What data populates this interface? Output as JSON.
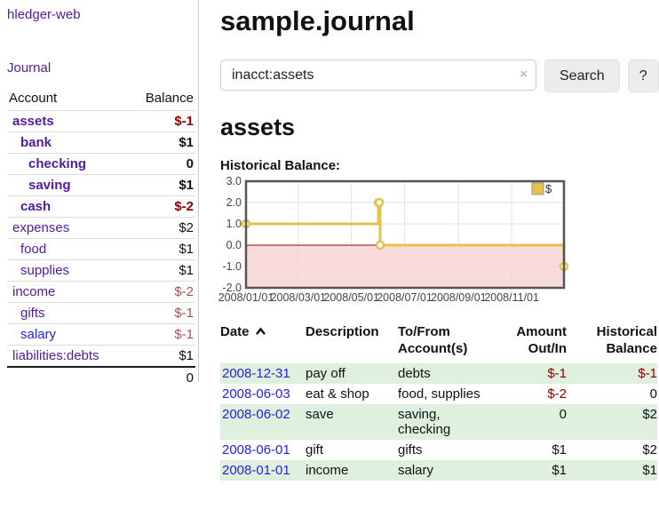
{
  "app": {
    "brand": "hledger-web",
    "nav_journal": "Journal"
  },
  "sidebar": {
    "headers": {
      "account": "Account",
      "balance": "Balance"
    },
    "accounts": [
      {
        "name": "assets",
        "indent": 1,
        "bold": true,
        "balance": "$-1",
        "negative": true,
        "unvisited": false
      },
      {
        "name": "bank",
        "indent": 2,
        "bold": true,
        "balance": "$1",
        "negative": false,
        "unvisited": false
      },
      {
        "name": "checking",
        "indent": 3,
        "bold": true,
        "balance": "0",
        "negative": false,
        "unvisited": false
      },
      {
        "name": "saving",
        "indent": 3,
        "bold": true,
        "balance": "$1",
        "negative": false,
        "unvisited": false
      },
      {
        "name": "cash",
        "indent": 2,
        "bold": true,
        "balance": "$-2",
        "negative": true,
        "unvisited": false
      },
      {
        "name": "expenses",
        "indent": 1,
        "bold": false,
        "balance": "$2",
        "negative": false,
        "unvisited": false
      },
      {
        "name": "food",
        "indent": 2,
        "bold": false,
        "balance": "$1",
        "negative": false,
        "unvisited": false
      },
      {
        "name": "supplies",
        "indent": 2,
        "bold": false,
        "balance": "$1",
        "negative": false,
        "unvisited": false
      },
      {
        "name": "income",
        "indent": 1,
        "bold": false,
        "balance": "$-2",
        "negative": true,
        "unvisited": false
      },
      {
        "name": "gifts",
        "indent": 2,
        "bold": false,
        "balance": "$-1",
        "negative": true,
        "unvisited": false
      },
      {
        "name": "salary",
        "indent": 2,
        "bold": false,
        "balance": "$-1",
        "negative": true,
        "unvisited": true
      },
      {
        "name": "liabilities:debts",
        "indent": 1,
        "bold": false,
        "balance": "$1",
        "negative": false,
        "unvisited": false
      }
    ],
    "total": "0"
  },
  "header": {
    "title": "sample.journal"
  },
  "search": {
    "value": "inacct:assets",
    "clear_icon": "×",
    "button_label": "Search",
    "help_label": "?"
  },
  "account_page": {
    "heading": "assets",
    "chart_label": "Historical Balance:"
  },
  "chart_data": {
    "type": "line",
    "step": true,
    "title": "Historical Balance",
    "series": [
      {
        "name": "$",
        "x": [
          "2008-01-01",
          "2008-06-01",
          "2008-06-02",
          "2008-06-03",
          "2008-12-31"
        ],
        "values": [
          1,
          2,
          2,
          0,
          -1
        ]
      }
    ],
    "xlim": [
      "2008-01-01",
      "2008-12-31"
    ],
    "ylim": [
      -2,
      3
    ],
    "yticks": [
      {
        "label": "3.0",
        "value": 3
      },
      {
        "label": "2.0",
        "value": 2
      },
      {
        "label": "1.0",
        "value": 1
      },
      {
        "label": "0.0",
        "value": 0
      },
      {
        "label": "-1.0",
        "value": -1
      },
      {
        "label": "-2.0",
        "value": -2
      }
    ],
    "xticks": [
      {
        "label": "2008/01/01",
        "date": "2008-01-01"
      },
      {
        "label": "2008/03/01",
        "date": "2008-03-01"
      },
      {
        "label": "2008/05/01",
        "date": "2008-05-01"
      },
      {
        "label": "2008/07/01",
        "date": "2008-07-01"
      },
      {
        "label": "2008/09/01",
        "date": "2008-09-01"
      },
      {
        "label": "2008/11/01",
        "date": "2008-11-01"
      }
    ],
    "legend": {
      "label": "$",
      "position": "top-right"
    },
    "grid": true,
    "colors": {
      "line": "#e6c14c",
      "marker_fill": "#ffffff",
      "border": "#555555",
      "grid": "#e3e3e3",
      "negative_band": "#f8d2d2",
      "zero_line": "#8b0000",
      "tick_text": "#444444"
    }
  },
  "register": {
    "headers": {
      "date": "Date",
      "description": "Description",
      "accounts": "To/From Account(s)",
      "amount": "Amount Out/In",
      "balance": "Historical Balance"
    },
    "sort": {
      "column": "date",
      "direction": "ascending"
    },
    "rows": [
      {
        "date": "2008-12-31",
        "description": "pay off",
        "accounts": "debts",
        "amount": "$-1",
        "balance": "$-1"
      },
      {
        "date": "2008-06-03",
        "description": "eat & shop",
        "accounts": "food, supplies",
        "amount": "$-2",
        "balance": "0"
      },
      {
        "date": "2008-06-02",
        "description": "save",
        "accounts": "saving,\nchecking",
        "amount": "0",
        "balance": "$2"
      },
      {
        "date": "2008-06-01",
        "description": "gift",
        "accounts": "gifts",
        "amount": "$1",
        "balance": "$2"
      },
      {
        "date": "2008-01-01",
        "description": "income",
        "accounts": "salary",
        "amount": "$1",
        "balance": "$1"
      }
    ]
  },
  "colors": {
    "link_purple": "#551a9b",
    "link_blue": "#2422dd",
    "negative_strong": "#8b0000",
    "negative_soft": "#ab5353",
    "row_stripe_green": "#dff0df"
  }
}
